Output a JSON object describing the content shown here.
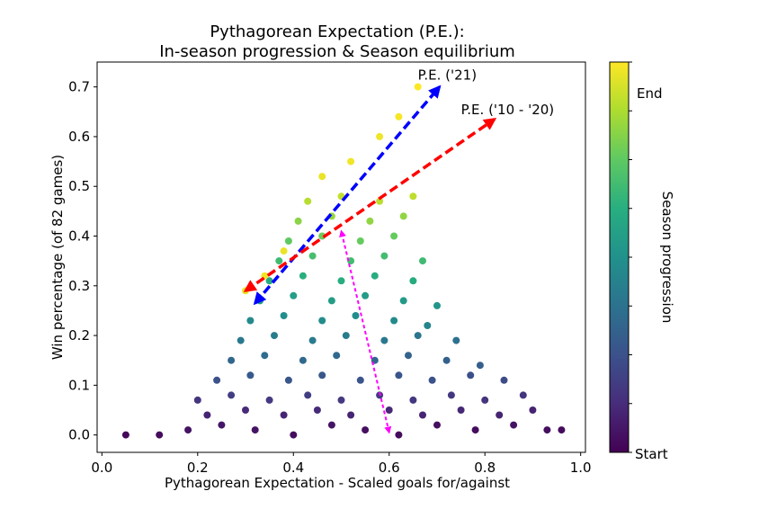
{
  "chart_data": {
    "type": "scatter",
    "title": "Pythagorean Expectation (P.E.):",
    "subtitle": "In-season progression & Season equilibrium",
    "xlabel": "Pythagorean Expectation - Scaled goals for/against",
    "ylabel": "Win percentage (of 82 games)",
    "xlim": [
      -0.01,
      1.01
    ],
    "ylim": [
      -0.035,
      0.75
    ],
    "xticks": [
      0.0,
      0.2,
      0.4,
      0.6,
      0.8,
      1.0
    ],
    "xtick_labels": [
      "0.0",
      "0.2",
      "0.4",
      "0.6",
      "0.8",
      "1.0"
    ],
    "yticks": [
      0.0,
      0.1,
      0.2,
      0.3,
      0.4,
      0.5,
      0.6,
      0.7
    ],
    "ytick_labels": [
      "0.0",
      "0.1",
      "0.2",
      "0.3",
      "0.4",
      "0.5",
      "0.6",
      "0.7"
    ],
    "grid": false,
    "colorbar": {
      "label": "Season progression",
      "start_label": "Start",
      "end_label": "End",
      "colormap": "viridis",
      "colors": [
        "#440154",
        "#472d7b",
        "#3b528b",
        "#2c728e",
        "#21918c",
        "#28ae80",
        "#5ec962",
        "#addc30",
        "#fde725"
      ]
    },
    "series": [
      {
        "type": "scatter",
        "color_by": "season progression (0 = start, 1 = end)",
        "points": [
          [
            0.05,
            0.0,
            0.02
          ],
          [
            0.12,
            0.0,
            0.03
          ],
          [
            0.18,
            0.01,
            0.05
          ],
          [
            0.25,
            0.02,
            0.06
          ],
          [
            0.32,
            0.01,
            0.05
          ],
          [
            0.4,
            0.0,
            0.03
          ],
          [
            0.48,
            0.02,
            0.05
          ],
          [
            0.55,
            0.01,
            0.04
          ],
          [
            0.62,
            0.0,
            0.03
          ],
          [
            0.7,
            0.02,
            0.04
          ],
          [
            0.78,
            0.01,
            0.03
          ],
          [
            0.86,
            0.02,
            0.05
          ],
          [
            0.93,
            0.01,
            0.04
          ],
          [
            0.96,
            0.01,
            0.03
          ],
          [
            0.22,
            0.04,
            0.1
          ],
          [
            0.3,
            0.05,
            0.12
          ],
          [
            0.38,
            0.04,
            0.1
          ],
          [
            0.45,
            0.05,
            0.12
          ],
          [
            0.52,
            0.04,
            0.1
          ],
          [
            0.6,
            0.05,
            0.11
          ],
          [
            0.67,
            0.04,
            0.1
          ],
          [
            0.75,
            0.05,
            0.11
          ],
          [
            0.83,
            0.04,
            0.1
          ],
          [
            0.9,
            0.05,
            0.1
          ],
          [
            0.2,
            0.07,
            0.15
          ],
          [
            0.27,
            0.08,
            0.18
          ],
          [
            0.35,
            0.07,
            0.17
          ],
          [
            0.43,
            0.08,
            0.18
          ],
          [
            0.5,
            0.07,
            0.17
          ],
          [
            0.58,
            0.08,
            0.17
          ],
          [
            0.65,
            0.07,
            0.16
          ],
          [
            0.73,
            0.08,
            0.16
          ],
          [
            0.8,
            0.07,
            0.15
          ],
          [
            0.88,
            0.08,
            0.15
          ],
          [
            0.24,
            0.11,
            0.25
          ],
          [
            0.31,
            0.12,
            0.28
          ],
          [
            0.39,
            0.11,
            0.27
          ],
          [
            0.46,
            0.12,
            0.27
          ],
          [
            0.54,
            0.11,
            0.26
          ],
          [
            0.62,
            0.12,
            0.26
          ],
          [
            0.69,
            0.11,
            0.25
          ],
          [
            0.77,
            0.12,
            0.24
          ],
          [
            0.84,
            0.11,
            0.23
          ],
          [
            0.27,
            0.15,
            0.33
          ],
          [
            0.34,
            0.16,
            0.35
          ],
          [
            0.42,
            0.15,
            0.34
          ],
          [
            0.49,
            0.16,
            0.34
          ],
          [
            0.57,
            0.15,
            0.33
          ],
          [
            0.64,
            0.16,
            0.32
          ],
          [
            0.72,
            0.15,
            0.31
          ],
          [
            0.79,
            0.14,
            0.3
          ],
          [
            0.29,
            0.19,
            0.4
          ],
          [
            0.36,
            0.2,
            0.42
          ],
          [
            0.44,
            0.19,
            0.41
          ],
          [
            0.51,
            0.2,
            0.41
          ],
          [
            0.59,
            0.19,
            0.4
          ],
          [
            0.66,
            0.2,
            0.39
          ],
          [
            0.74,
            0.19,
            0.37
          ],
          [
            0.31,
            0.23,
            0.47
          ],
          [
            0.38,
            0.24,
            0.49
          ],
          [
            0.46,
            0.23,
            0.48
          ],
          [
            0.53,
            0.24,
            0.48
          ],
          [
            0.61,
            0.23,
            0.47
          ],
          [
            0.68,
            0.22,
            0.45
          ],
          [
            0.33,
            0.27,
            0.54
          ],
          [
            0.4,
            0.28,
            0.56
          ],
          [
            0.48,
            0.27,
            0.55
          ],
          [
            0.55,
            0.28,
            0.55
          ],
          [
            0.63,
            0.27,
            0.54
          ],
          [
            0.7,
            0.26,
            0.52
          ],
          [
            0.35,
            0.31,
            0.61
          ],
          [
            0.42,
            0.32,
            0.63
          ],
          [
            0.5,
            0.31,
            0.62
          ],
          [
            0.57,
            0.32,
            0.62
          ],
          [
            0.65,
            0.31,
            0.61
          ],
          [
            0.37,
            0.35,
            0.68
          ],
          [
            0.44,
            0.36,
            0.7
          ],
          [
            0.52,
            0.35,
            0.69
          ],
          [
            0.59,
            0.36,
            0.69
          ],
          [
            0.67,
            0.35,
            0.68
          ],
          [
            0.39,
            0.39,
            0.75
          ],
          [
            0.46,
            0.4,
            0.77
          ],
          [
            0.54,
            0.39,
            0.76
          ],
          [
            0.61,
            0.4,
            0.76
          ],
          [
            0.41,
            0.43,
            0.82
          ],
          [
            0.48,
            0.44,
            0.84
          ],
          [
            0.56,
            0.43,
            0.83
          ],
          [
            0.63,
            0.44,
            0.83
          ],
          [
            0.43,
            0.47,
            0.89
          ],
          [
            0.5,
            0.48,
            0.91
          ],
          [
            0.58,
            0.47,
            0.9
          ],
          [
            0.65,
            0.48,
            0.9
          ],
          [
            0.3,
            0.29,
            0.97
          ],
          [
            0.34,
            0.32,
            0.98
          ],
          [
            0.38,
            0.37,
            0.97
          ],
          [
            0.46,
            0.52,
            0.97
          ],
          [
            0.52,
            0.55,
            0.98
          ],
          [
            0.58,
            0.6,
            0.98
          ],
          [
            0.62,
            0.64,
            0.99
          ],
          [
            0.66,
            0.7,
            1.0
          ]
        ]
      }
    ],
    "arrows": [
      {
        "name": "P.E. ('21)",
        "color": "#0000ff",
        "from": [
          0.32,
          0.265
        ],
        "to": [
          0.705,
          0.7
        ],
        "double_headed": true
      },
      {
        "name": "P.E. ('10 - '20)",
        "color": "#ff0000",
        "from": [
          0.3,
          0.29
        ],
        "to": [
          0.82,
          0.635
        ],
        "double_headed": true
      },
      {
        "name": "",
        "color": "#ff00ff",
        "from": [
          0.6,
          0.005
        ],
        "to": [
          0.5,
          0.41
        ],
        "double_headed": true
      }
    ],
    "annotations": [
      {
        "text": "P.E. ('21)",
        "x": 0.66,
        "y": 0.715
      },
      {
        "text": "P.E. ('10 - '20)",
        "x": 0.75,
        "y": 0.645
      }
    ]
  }
}
